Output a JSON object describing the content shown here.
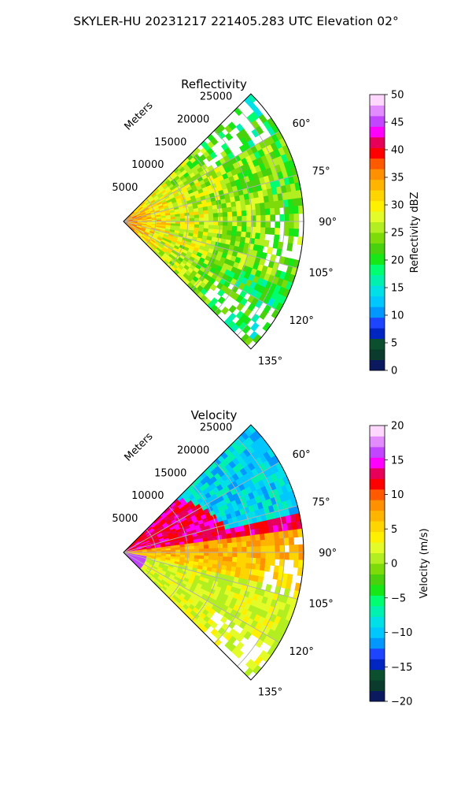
{
  "figure": {
    "suptitle": "SKYLER-HU  20231217  221405.283 UTC Elevation 02°"
  },
  "chart_data": [
    {
      "type": "heatmap",
      "projection": "polar-sector",
      "title": "Reflectivity",
      "range_label": "Meters",
      "range_ticks": [
        "5000",
        "10000",
        "15000",
        "20000",
        "25000"
      ],
      "range_tick_values": [
        5000,
        10000,
        15000,
        20000,
        25000
      ],
      "azimuth_ticks": [
        "60°",
        "75°",
        "90°",
        "105°",
        "120°",
        "135°"
      ],
      "azimuth_tick_values": [
        60,
        75,
        90,
        105,
        120,
        135
      ],
      "azimuth_range": [
        45,
        135
      ],
      "range_max": 28000,
      "grid": true,
      "colorbar": {
        "label": "Reflectivity dBZ",
        "min": 0,
        "max": 50,
        "ticks": [
          "0",
          "5",
          "10",
          "15",
          "20",
          "25",
          "30",
          "35",
          "40",
          "45",
          "50"
        ],
        "tick_values": [
          0,
          5,
          10,
          15,
          20,
          25,
          30,
          35,
          40,
          45,
          50
        ],
        "colors": [
          "#0b1a5e",
          "#0a3b2c",
          "#0b4f2f",
          "#0025c0",
          "#1d44ff",
          "#0098ff",
          "#00c8ff",
          "#00e0e6",
          "#00f0b0",
          "#00ff70",
          "#17e617",
          "#4ad10e",
          "#7edb0a",
          "#b2ee20",
          "#e4fb2a",
          "#fff000",
          "#ffd500",
          "#ffb400",
          "#ff9000",
          "#ff5a00",
          "#ff0000",
          "#e6005a",
          "#ff00ff",
          "#c246ff",
          "#e28cff",
          "#ffd8ff"
        ]
      },
      "description_values": {
        "near_field_dbz": 36,
        "mid_field_dbz": 28,
        "far_field_dbz": 21
      }
    },
    {
      "type": "heatmap",
      "projection": "polar-sector",
      "title": "Velocity",
      "range_label": "Meters",
      "range_ticks": [
        "5000",
        "10000",
        "15000",
        "20000",
        "25000"
      ],
      "range_tick_values": [
        5000,
        10000,
        15000,
        20000,
        25000
      ],
      "azimuth_ticks": [
        "60°",
        "75°",
        "90°",
        "105°",
        "120°",
        "135°"
      ],
      "azimuth_tick_values": [
        60,
        75,
        90,
        105,
        120,
        135
      ],
      "azimuth_range": [
        45,
        135
      ],
      "range_max": 28000,
      "grid": true,
      "colorbar": {
        "label": "Velocity (m/s)",
        "min": -20,
        "max": 20,
        "ticks": [
          "−20",
          "−15",
          "−10",
          "−5",
          "0",
          "5",
          "10",
          "15",
          "20"
        ],
        "tick_values": [
          -20,
          -15,
          -10,
          -5,
          0,
          5,
          10,
          15,
          20
        ],
        "colors": [
          "#0b1a5e",
          "#0a3b2c",
          "#0b4f2f",
          "#0025c0",
          "#1d44ff",
          "#0098ff",
          "#00c8ff",
          "#00e0e6",
          "#00f0b0",
          "#00ff70",
          "#17e617",
          "#4ad10e",
          "#7edb0a",
          "#b2ee20",
          "#e4fb2a",
          "#fff000",
          "#ffd500",
          "#ffb400",
          "#ff9000",
          "#ff5a00",
          "#ff0000",
          "#e6005a",
          "#ff00ff",
          "#c246ff",
          "#e28cff",
          "#ffd8ff"
        ]
      },
      "description_values": {
        "north_far_ms": -9,
        "north_mid_ms": 13,
        "center_ms": 8,
        "south_ms": 2
      }
    }
  ]
}
